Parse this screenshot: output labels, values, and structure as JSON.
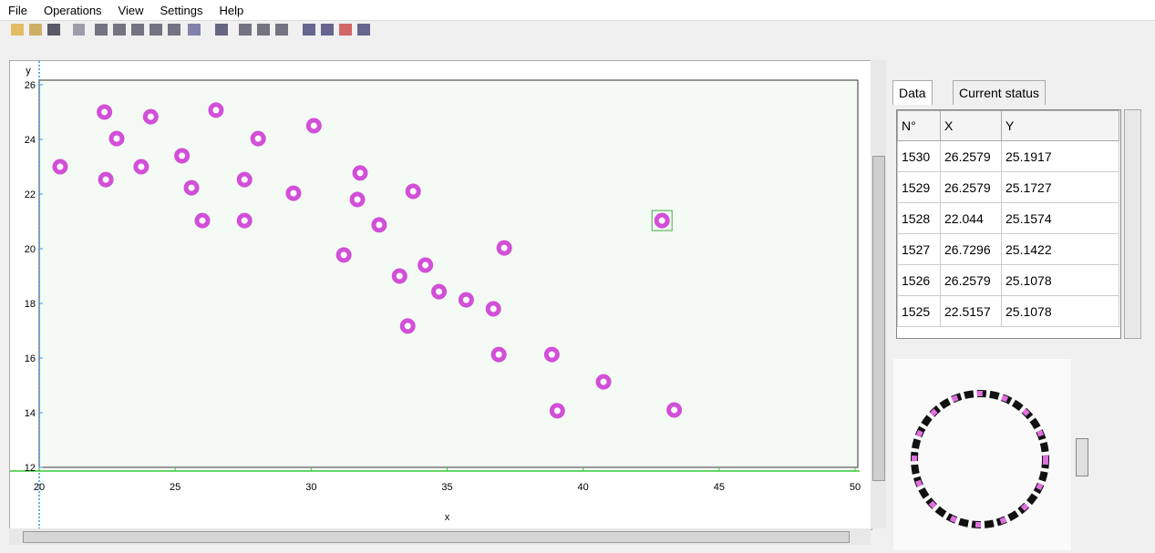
{
  "menu": [
    "File",
    "Operations",
    "View",
    "Settings",
    "Help"
  ],
  "plot": {
    "x_label": "x",
    "y_label": "y",
    "xlim": [
      20,
      50
    ],
    "ylim": [
      12,
      26
    ],
    "xticks": [
      20,
      25,
      30,
      35,
      40,
      45,
      50
    ],
    "yticks": [
      12,
      14,
      16,
      18,
      20,
      22,
      24,
      26
    ],
    "points": {
      "x": [
        20.77,
        22.4,
        22.85,
        22.45,
        24.1,
        23.75,
        25.25,
        25.6,
        26.0,
        26.5,
        27.55,
        27.55,
        28.05,
        29.35,
        30.1,
        31.8,
        31.7,
        32.5,
        33.75,
        31.2,
        33.25,
        34.2,
        34.7,
        35.7,
        36.7,
        33.55,
        37.1,
        36.9,
        38.85,
        40.75,
        39.05,
        43.35,
        42.9
      ],
      "y": [
        23.0,
        25.0,
        24.03,
        22.53,
        24.83,
        23.0,
        23.4,
        22.23,
        21.03,
        25.07,
        22.53,
        21.03,
        24.03,
        22.03,
        24.5,
        22.77,
        21.8,
        20.87,
        22.1,
        19.77,
        19.0,
        19.4,
        18.43,
        18.13,
        17.8,
        17.17,
        20.03,
        16.13,
        16.13,
        15.13,
        14.07,
        14.1,
        21.03
      ]
    }
  },
  "tabs": [
    "Data",
    "Current status"
  ],
  "table": {
    "header": [
      "N°",
      "X",
      "Y"
    ],
    "rows": [
      [
        "1530",
        "26.2579",
        "25.1917"
      ],
      [
        "1529",
        "26.2579",
        "25.1727"
      ],
      [
        "1528",
        "22.044",
        "25.1574"
      ],
      [
        "1527",
        "26.7296",
        "25.1422"
      ],
      [
        "1526",
        "26.2579",
        "25.1078"
      ],
      [
        "1525",
        "22.5157",
        "25.1078"
      ]
    ]
  }
}
